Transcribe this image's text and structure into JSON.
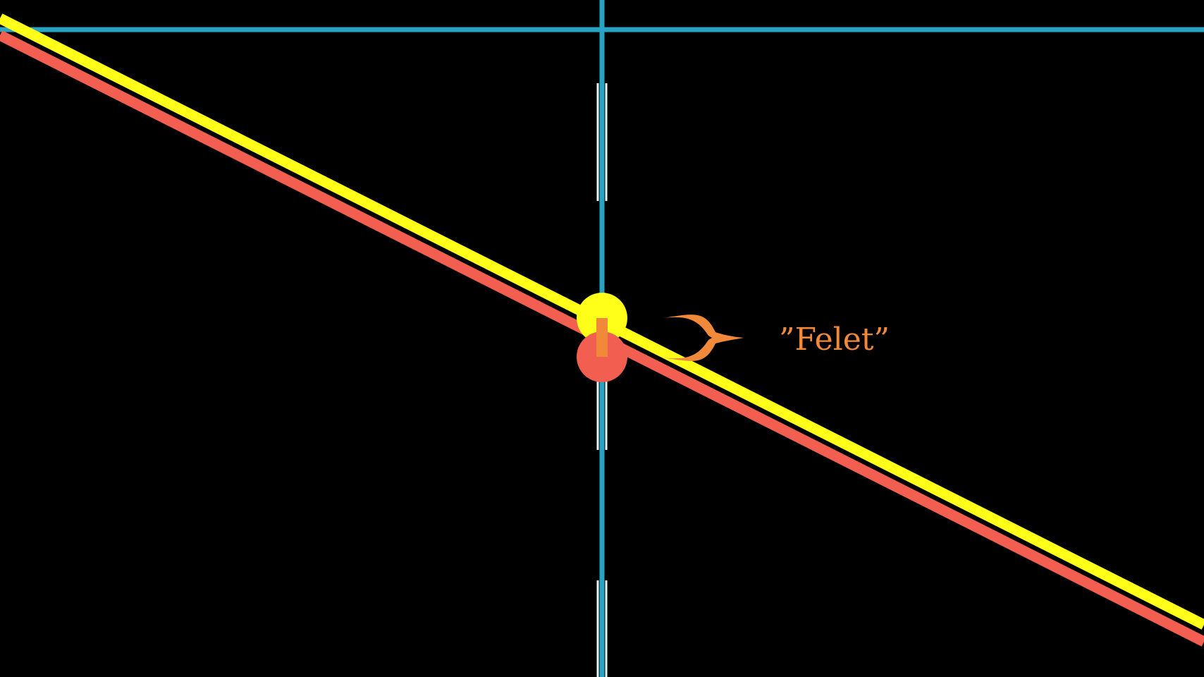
{
  "scene": {
    "background_color": "#000000",
    "label": "”Felet”",
    "colors": {
      "axis": "#29a3c4",
      "tick": "#e8f6fa",
      "prediction_line": "#ffff1a",
      "true_line": "#f25e4f",
      "error": "#f08a3a",
      "label": "#f08a3a"
    }
  }
}
